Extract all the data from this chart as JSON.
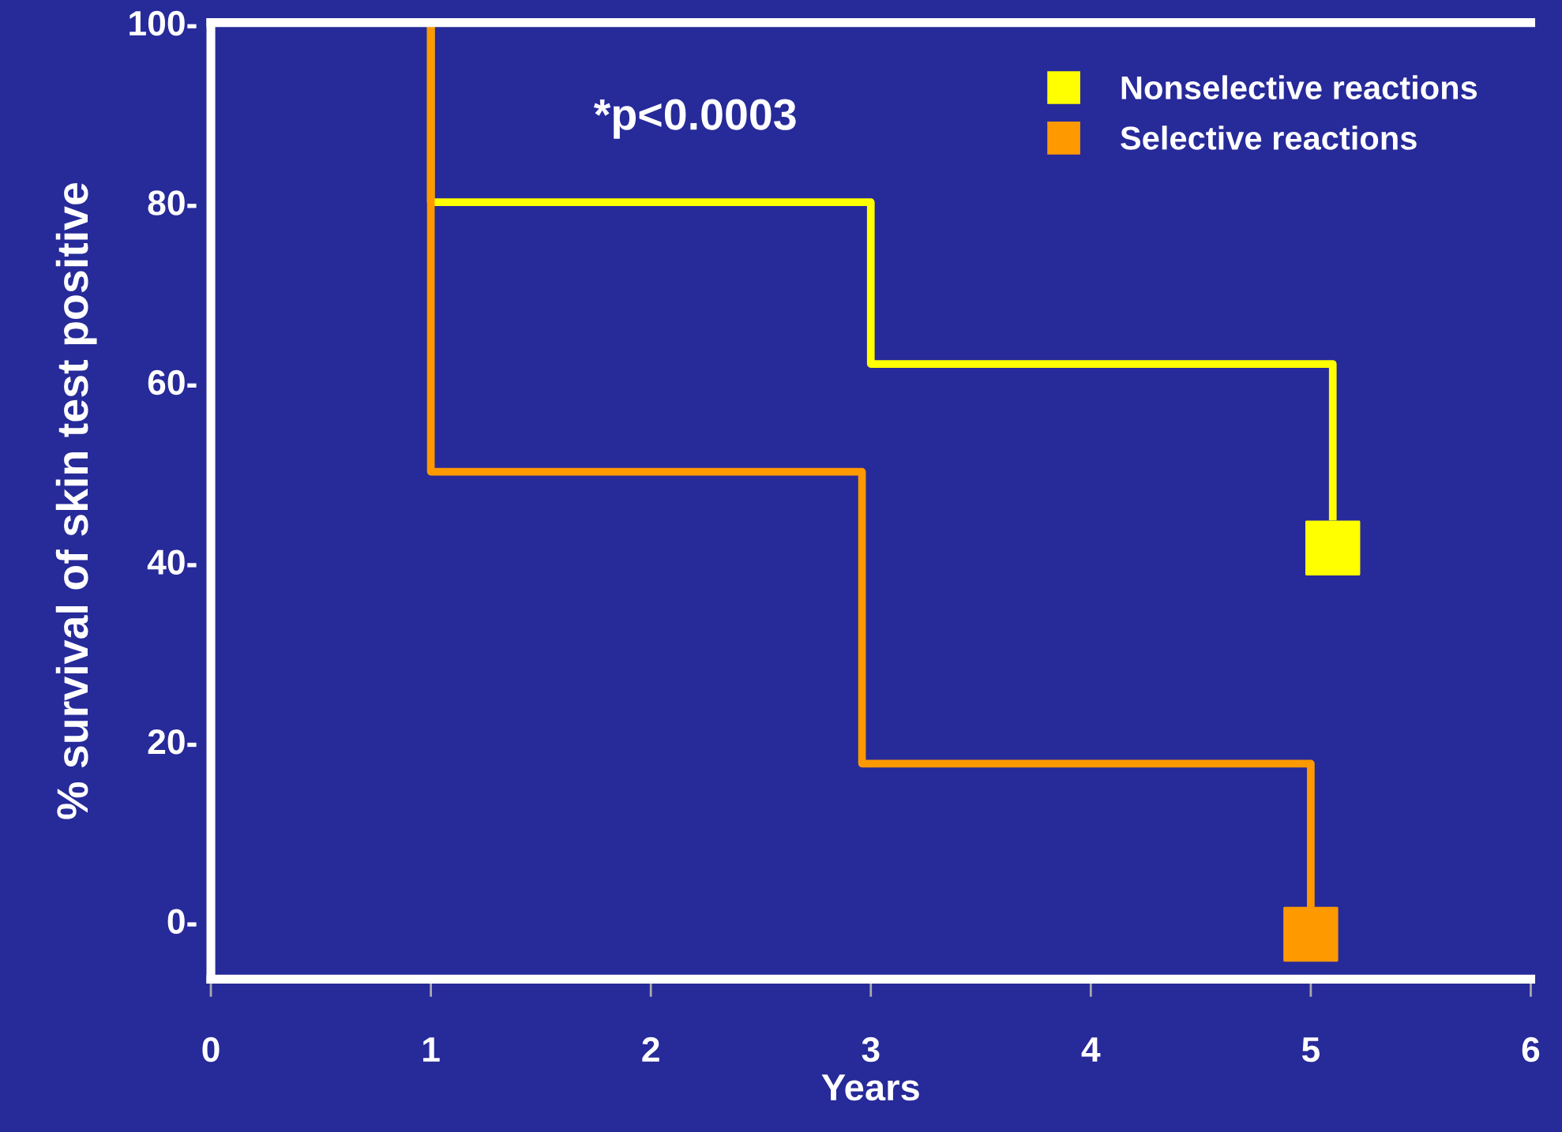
{
  "chart_data": {
    "type": "line",
    "xlabel": "Years",
    "ylabel": "% survival of skin test positive",
    "series": [
      {
        "name": "Nonselective reactions",
        "color": "#ffff00",
        "x": [
          1,
          1,
          3,
          3,
          5.1,
          5.1
        ],
        "values": [
          100,
          80,
          80,
          62,
          62,
          45
        ]
      },
      {
        "name": "Selective reactions",
        "color": "#ff9900",
        "x": [
          1,
          1,
          2.96,
          2.96,
          5,
          5
        ],
        "values": [
          100,
          50,
          50,
          17.5,
          17.5,
          1.5
        ]
      },
      {
        "type": "scatter",
        "color": "#ffff00",
        "x": [
          5.1
        ],
        "values": [
          41.5
        ]
      },
      {
        "type": "scatter",
        "color": "#ff9900",
        "x": [
          5
        ],
        "values": [
          -1.5
        ]
      }
    ],
    "xlim": [
      0,
      6
    ],
    "xticks": [
      0,
      1,
      2,
      3,
      4,
      5,
      6
    ],
    "ylim": [
      -6.5,
      100
    ],
    "yticks": [
      {
        "value": 0,
        "label": "0-"
      },
      {
        "value": 20,
        "label": "20-"
      },
      {
        "value": 40,
        "label": "40-"
      },
      {
        "value": 60,
        "label": "60-"
      },
      {
        "value": 80,
        "label": "80-"
      },
      {
        "value": 100,
        "label": "100-"
      }
    ],
    "annotations": [
      "*p<0.0003"
    ],
    "line_style": "solid",
    "legend": "top right",
    "grid": false
  }
}
